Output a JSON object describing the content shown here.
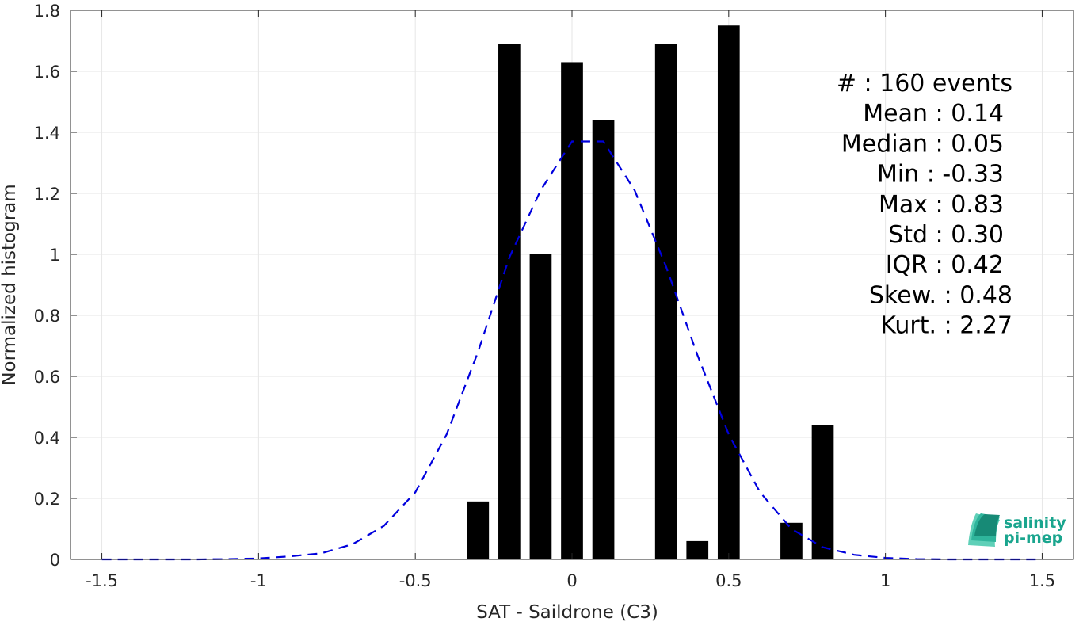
{
  "chart_data": {
    "type": "bar",
    "xlabel": "SAT - Saildrone (C3)",
    "ylabel": "Normalized histogram",
    "xlim": [
      -1.6,
      1.6
    ],
    "ylim": [
      0,
      1.8
    ],
    "grid": true,
    "x_ticks": [
      "-1.5",
      "-1",
      "-0.5",
      "0",
      "0.5",
      "1",
      "1.5"
    ],
    "y_ticks": [
      "0",
      "0.2",
      "0.4",
      "0.6",
      "0.8",
      "1",
      "1.2",
      "1.4",
      "1.6",
      "1.8"
    ],
    "bar_width": 0.07,
    "bars": [
      {
        "x": -0.3,
        "value": 0.19
      },
      {
        "x": -0.2,
        "value": 1.69
      },
      {
        "x": -0.1,
        "value": 1.0
      },
      {
        "x": 0.0,
        "value": 1.63
      },
      {
        "x": 0.1,
        "value": 1.44
      },
      {
        "x": 0.3,
        "value": 1.69
      },
      {
        "x": 0.4,
        "value": 0.06
      },
      {
        "x": 0.5,
        "value": 1.75
      },
      {
        "x": 0.7,
        "value": 0.12
      },
      {
        "x": 0.8,
        "value": 0.44
      }
    ],
    "fit_curve": {
      "style": "dashed",
      "color": "#0000dd",
      "x": [
        -1.5,
        -1.4,
        -1.3,
        -1.2,
        -1.1,
        -1.0,
        -0.9,
        -0.8,
        -0.7,
        -0.6,
        -0.5,
        -0.4,
        -0.3,
        -0.2,
        -0.1,
        0.0,
        0.1,
        0.2,
        0.3,
        0.4,
        0.5,
        0.6,
        0.7,
        0.8,
        0.9,
        1.0,
        1.1,
        1.2,
        1.3,
        1.4,
        1.5
      ],
      "y": [
        0.0,
        0.0,
        0.0,
        0.0,
        0.001,
        0.003,
        0.01,
        0.02,
        0.05,
        0.11,
        0.22,
        0.41,
        0.68,
        0.99,
        1.21,
        1.37,
        1.37,
        1.21,
        0.96,
        0.67,
        0.41,
        0.22,
        0.1,
        0.04,
        0.015,
        0.005,
        0.001,
        0.0,
        0.0,
        0.0,
        0.0
      ]
    },
    "bar_color": "#000000"
  },
  "stats": [
    {
      "label": "#  : 160 events"
    },
    {
      "label": "Mean : 0.14"
    },
    {
      "label": "Median : 0.05"
    },
    {
      "label": "Min : -0.33"
    },
    {
      "label": "Max : 0.83"
    },
    {
      "label": "Std : 0.30"
    },
    {
      "label": "IQR : 0.42"
    },
    {
      "label": "Skew. : 0.48"
    },
    {
      "label": "Kurt. : 2.27"
    }
  ],
  "logo": {
    "line1": "salinity",
    "line2": "pi-mep",
    "color": "#1aa58e"
  }
}
